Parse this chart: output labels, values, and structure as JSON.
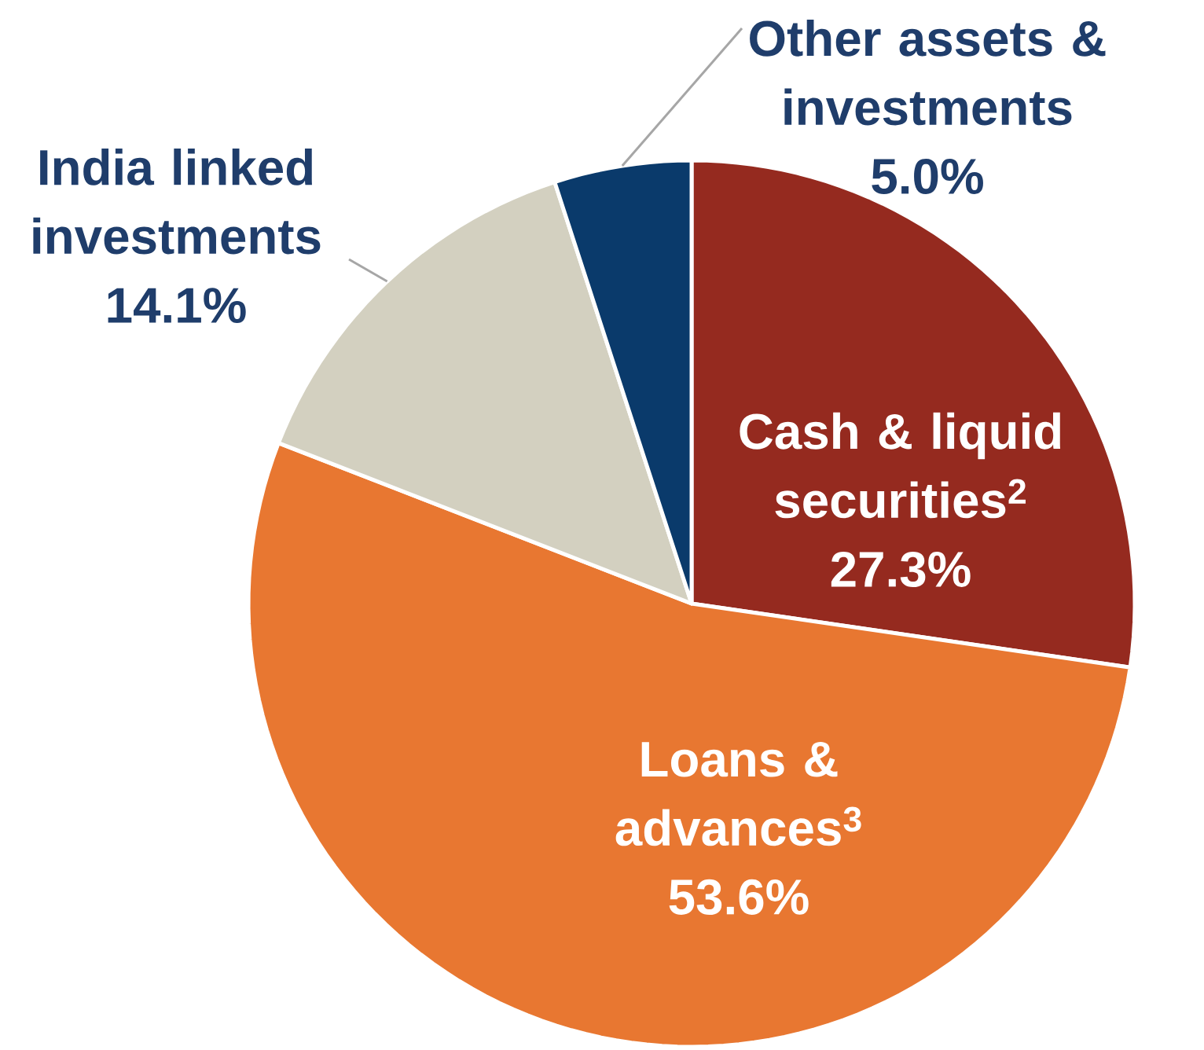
{
  "chart_data": {
    "type": "pie",
    "categories": [
      "Cash & liquid securities$^{2}$",
      "Loans & advances$^{3}$",
      "India linked investments",
      "Other assets & investments"
    ],
    "values": [
      27.3,
      53.6,
      14.1,
      5.0
    ],
    "value_labels": [
      "27.3%",
      "53.6%",
      "14.1%",
      "5.0%"
    ],
    "colors": [
      "#952a1f",
      "#e87731",
      "#d3d0c0",
      "#0a3a6b"
    ]
  }
}
